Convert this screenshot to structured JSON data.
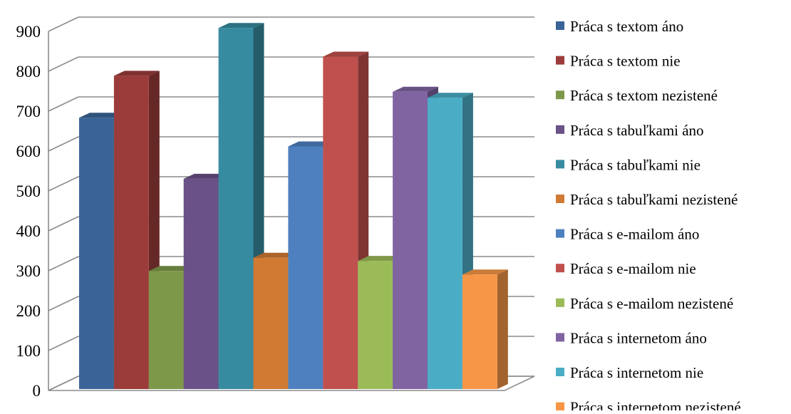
{
  "chart_data": {
    "type": "bar",
    "categories": [
      ""
    ],
    "series": [
      {
        "name": "Práca s textom áno",
        "values": [
          680
        ],
        "color": "#3A6497"
      },
      {
        "name": "Práca s textom nie",
        "values": [
          785
        ],
        "color": "#9B3C3A"
      },
      {
        "name": "Práca s textom nezistené",
        "values": [
          296
        ],
        "color": "#7E9849"
      },
      {
        "name": "Práca s tabuľkami áno",
        "values": [
          527
        ],
        "color": "#6A5187"
      },
      {
        "name": "Práca s tabuľkami nie",
        "values": [
          905
        ],
        "color": "#378BA0"
      },
      {
        "name": "Práca s tabuľkami nezistené",
        "values": [
          329
        ],
        "color": "#D07A33"
      },
      {
        "name": "Práca s e-mailom áno",
        "values": [
          608
        ],
        "color": "#4E80BF"
      },
      {
        "name": "Práca s e-mailom nie",
        "values": [
          833
        ],
        "color": "#C0504D"
      },
      {
        "name": "Práca s e-mailom nezistené",
        "values": [
          321
        ],
        "color": "#9BBB59"
      },
      {
        "name": "Práca s internetom áno",
        "values": [
          745
        ],
        "color": "#8064A2"
      },
      {
        "name": "Práca s internetom nie",
        "values": [
          730
        ],
        "color": "#4BACC6"
      },
      {
        "name": "Práca s internetom nezistené",
        "values": [
          287
        ],
        "color": "#F79646"
      }
    ],
    "yticks": [
      "0",
      "100",
      "200",
      "300",
      "400",
      "500",
      "600",
      "700",
      "800",
      "900"
    ],
    "ylim": [
      0,
      900
    ],
    "title": "",
    "xlabel": "",
    "ylabel": "",
    "grid": true,
    "legend": "right",
    "style": "3d-clustered"
  }
}
